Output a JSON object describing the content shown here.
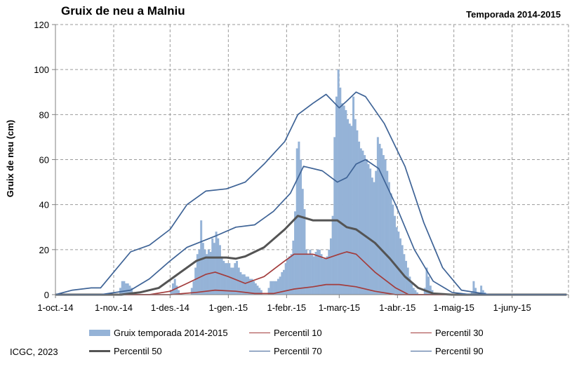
{
  "chart_data": {
    "type": "bar",
    "title": "Gruix de neu a Malniu",
    "subtitle": "Temporada 2014-2015",
    "xlabel": "",
    "ylabel": "Gruix de neu (cm)",
    "ylim": [
      0,
      120
    ],
    "yticks": [
      "0",
      "20",
      "40",
      "60",
      "80",
      "100",
      "120"
    ],
    "xticks": [
      "1-oct.-14",
      "1-nov.-14",
      "1-des.-14",
      "1-gen.-15",
      "1-febr.-15",
      "1-març-15",
      "1-abr.-15",
      "1-maig-15",
      "1-juny-15"
    ],
    "x_start": "2014-10-01",
    "x_end": "2015-06-30",
    "grid": true,
    "legend_position": "bottom",
    "bars": {
      "name": "Gruix temporada 2014-2015",
      "color": "#95b3d7",
      "points": [
        [
          "2014-11-04",
          3
        ],
        [
          "2014-11-05",
          6
        ],
        [
          "2014-11-06",
          6
        ],
        [
          "2014-11-07",
          5
        ],
        [
          "2014-11-08",
          5
        ],
        [
          "2014-11-09",
          4
        ],
        [
          "2014-11-10",
          3
        ],
        [
          "2014-12-01",
          2
        ],
        [
          "2014-12-02",
          5
        ],
        [
          "2014-12-03",
          7
        ],
        [
          "2014-12-04",
          4
        ],
        [
          "2014-12-05",
          2
        ],
        [
          "2014-12-12",
          3
        ],
        [
          "2014-12-13",
          6
        ],
        [
          "2014-12-14",
          12
        ],
        [
          "2014-12-15",
          18
        ],
        [
          "2014-12-16",
          20
        ],
        [
          "2014-12-17",
          33
        ],
        [
          "2014-12-18",
          23
        ],
        [
          "2014-12-19",
          20
        ],
        [
          "2014-12-20",
          18
        ],
        [
          "2014-12-21",
          20
        ],
        [
          "2014-12-22",
          19
        ],
        [
          "2014-12-23",
          25
        ],
        [
          "2014-12-24",
          23
        ],
        [
          "2014-12-25",
          28
        ],
        [
          "2014-12-26",
          25
        ],
        [
          "2014-12-27",
          22
        ],
        [
          "2014-12-28",
          17
        ],
        [
          "2014-12-29",
          15
        ],
        [
          "2014-12-30",
          14
        ],
        [
          "2014-12-31",
          14
        ],
        [
          "2015-01-01",
          14
        ],
        [
          "2015-01-02",
          12
        ],
        [
          "2015-01-03",
          12
        ],
        [
          "2015-01-04",
          14
        ],
        [
          "2015-01-05",
          15
        ],
        [
          "2015-01-06",
          12
        ],
        [
          "2015-01-07",
          10
        ],
        [
          "2015-01-08",
          9
        ],
        [
          "2015-01-09",
          9
        ],
        [
          "2015-01-10",
          8
        ],
        [
          "2015-01-11",
          8
        ],
        [
          "2015-01-12",
          7
        ],
        [
          "2015-01-13",
          7
        ],
        [
          "2015-01-14",
          6
        ],
        [
          "2015-01-15",
          5
        ],
        [
          "2015-01-16",
          4
        ],
        [
          "2015-01-17",
          3
        ],
        [
          "2015-01-18",
          2
        ],
        [
          "2015-01-22",
          3
        ],
        [
          "2015-01-23",
          6
        ],
        [
          "2015-01-24",
          6
        ],
        [
          "2015-01-25",
          6
        ],
        [
          "2015-01-26",
          6
        ],
        [
          "2015-01-27",
          7
        ],
        [
          "2015-01-28",
          8
        ],
        [
          "2015-01-29",
          10
        ],
        [
          "2015-01-30",
          11
        ],
        [
          "2015-01-31",
          14
        ],
        [
          "2015-02-01",
          16
        ],
        [
          "2015-02-02",
          17
        ],
        [
          "2015-02-03",
          18
        ],
        [
          "2015-02-04",
          24
        ],
        [
          "2015-02-05",
          37
        ],
        [
          "2015-02-06",
          65
        ],
        [
          "2015-02-07",
          68
        ],
        [
          "2015-02-08",
          60
        ],
        [
          "2015-02-09",
          47
        ],
        [
          "2015-02-10",
          38
        ],
        [
          "2015-02-11",
          20
        ],
        [
          "2015-02-12",
          18
        ],
        [
          "2015-02-13",
          20
        ],
        [
          "2015-02-14",
          18
        ],
        [
          "2015-02-15",
          17
        ],
        [
          "2015-02-16",
          19
        ],
        [
          "2015-02-17",
          20
        ],
        [
          "2015-02-18",
          20
        ],
        [
          "2015-02-19",
          18
        ],
        [
          "2015-02-20",
          16
        ],
        [
          "2015-02-21",
          16
        ],
        [
          "2015-02-22",
          17
        ],
        [
          "2015-02-23",
          20
        ],
        [
          "2015-02-24",
          25
        ],
        [
          "2015-02-25",
          35
        ],
        [
          "2015-02-26",
          70
        ],
        [
          "2015-02-27",
          88
        ],
        [
          "2015-02-28",
          100
        ],
        [
          "2015-03-01",
          92
        ],
        [
          "2015-03-02",
          85
        ],
        [
          "2015-03-03",
          84
        ],
        [
          "2015-03-04",
          82
        ],
        [
          "2015-03-05",
          78
        ],
        [
          "2015-03-06",
          76
        ],
        [
          "2015-03-07",
          75
        ],
        [
          "2015-03-08",
          88
        ],
        [
          "2015-03-09",
          78
        ],
        [
          "2015-03-10",
          73
        ],
        [
          "2015-03-11",
          68
        ],
        [
          "2015-03-12",
          65
        ],
        [
          "2015-03-13",
          64
        ],
        [
          "2015-03-14",
          62
        ],
        [
          "2015-03-15",
          60
        ],
        [
          "2015-03-16",
          58
        ],
        [
          "2015-03-17",
          56
        ],
        [
          "2015-03-18",
          52
        ],
        [
          "2015-03-19",
          50
        ],
        [
          "2015-03-20",
          55
        ],
        [
          "2015-03-21",
          70
        ],
        [
          "2015-03-22",
          67
        ],
        [
          "2015-03-23",
          65
        ],
        [
          "2015-03-24",
          62
        ],
        [
          "2015-03-25",
          60
        ],
        [
          "2015-03-26",
          55
        ],
        [
          "2015-03-27",
          50
        ],
        [
          "2015-03-28",
          45
        ],
        [
          "2015-03-29",
          40
        ],
        [
          "2015-03-30",
          35
        ],
        [
          "2015-03-31",
          30
        ],
        [
          "2015-04-01",
          28
        ],
        [
          "2015-04-02",
          25
        ],
        [
          "2015-04-03",
          22
        ],
        [
          "2015-04-04",
          18
        ],
        [
          "2015-04-05",
          15
        ],
        [
          "2015-04-06",
          12
        ],
        [
          "2015-04-07",
          8
        ],
        [
          "2015-04-08",
          5
        ],
        [
          "2015-04-09",
          3
        ],
        [
          "2015-04-10",
          2
        ],
        [
          "2015-04-11",
          1
        ],
        [
          "2015-04-15",
          3
        ],
        [
          "2015-04-16",
          12
        ],
        [
          "2015-04-17",
          8
        ],
        [
          "2015-04-18",
          4
        ],
        [
          "2015-04-19",
          2
        ],
        [
          "2015-05-10",
          1
        ],
        [
          "2015-05-11",
          6
        ],
        [
          "2015-05-12",
          3
        ],
        [
          "2015-05-13",
          1
        ],
        [
          "2015-05-15",
          4
        ],
        [
          "2015-05-16",
          2
        ],
        [
          "2015-05-17",
          1
        ]
      ]
    },
    "series": [
      {
        "name": "Percentil 10",
        "color": "#a33c3c",
        "width": 1.7,
        "points": [
          [
            "2014-10-01",
            0
          ],
          [
            "2014-12-01",
            0
          ],
          [
            "2014-12-15",
            1
          ],
          [
            "2014-12-25",
            2
          ],
          [
            "2015-01-05",
            1.5
          ],
          [
            "2015-01-15",
            0.5
          ],
          [
            "2015-01-25",
            0.5
          ],
          [
            "2015-02-05",
            2.5
          ],
          [
            "2015-02-15",
            3.5
          ],
          [
            "2015-02-22",
            4.5
          ],
          [
            "2015-03-01",
            4.5
          ],
          [
            "2015-03-10",
            3.5
          ],
          [
            "2015-03-20",
            1.5
          ],
          [
            "2015-03-31",
            0
          ],
          [
            "2015-06-30",
            0
          ]
        ]
      },
      {
        "name": "Percentil 30",
        "color": "#a33c3c",
        "width": 1.7,
        "points": [
          [
            "2014-10-01",
            0
          ],
          [
            "2014-11-20",
            0
          ],
          [
            "2014-12-01",
            1.5
          ],
          [
            "2014-12-10",
            5
          ],
          [
            "2014-12-20",
            9
          ],
          [
            "2014-12-25",
            10
          ],
          [
            "2015-01-01",
            8
          ],
          [
            "2015-01-10",
            5
          ],
          [
            "2015-01-20",
            8
          ],
          [
            "2015-01-31",
            15
          ],
          [
            "2015-02-05",
            18
          ],
          [
            "2015-02-15",
            18
          ],
          [
            "2015-02-22",
            16
          ],
          [
            "2015-03-01",
            18
          ],
          [
            "2015-03-05",
            19
          ],
          [
            "2015-03-10",
            18
          ],
          [
            "2015-03-20",
            10
          ],
          [
            "2015-03-31",
            3
          ],
          [
            "2015-04-07",
            0
          ],
          [
            "2015-06-30",
            0
          ]
        ]
      },
      {
        "name": "Percentil 50",
        "color": "#545454",
        "width": 3,
        "points": [
          [
            "2014-10-01",
            0
          ],
          [
            "2014-11-05",
            0
          ],
          [
            "2014-11-15",
            1
          ],
          [
            "2014-11-25",
            3
          ],
          [
            "2014-12-05",
            9
          ],
          [
            "2014-12-15",
            15
          ],
          [
            "2014-12-20",
            16.5
          ],
          [
            "2014-12-31",
            16.5
          ],
          [
            "2015-01-05",
            16
          ],
          [
            "2015-01-10",
            17
          ],
          [
            "2015-01-20",
            21
          ],
          [
            "2015-01-31",
            29
          ],
          [
            "2015-02-07",
            35
          ],
          [
            "2015-02-15",
            33
          ],
          [
            "2015-02-22",
            33
          ],
          [
            "2015-02-28",
            33
          ],
          [
            "2015-03-05",
            30
          ],
          [
            "2015-03-10",
            29
          ],
          [
            "2015-03-20",
            23
          ],
          [
            "2015-03-28",
            16
          ],
          [
            "2015-04-05",
            8
          ],
          [
            "2015-04-12",
            3
          ],
          [
            "2015-04-20",
            0.5
          ],
          [
            "2015-04-30",
            0
          ],
          [
            "2015-06-30",
            0
          ]
        ]
      },
      {
        "name": "Percentil 70",
        "color": "#3e6396",
        "width": 1.7,
        "points": [
          [
            "2014-10-01",
            0
          ],
          [
            "2014-10-25",
            0
          ],
          [
            "2014-11-10",
            2
          ],
          [
            "2014-11-20",
            7
          ],
          [
            "2014-12-01",
            15
          ],
          [
            "2014-12-10",
            21
          ],
          [
            "2014-12-25",
            26
          ],
          [
            "2015-01-05",
            30
          ],
          [
            "2015-01-15",
            31
          ],
          [
            "2015-01-25",
            37
          ],
          [
            "2015-02-03",
            45
          ],
          [
            "2015-02-10",
            57
          ],
          [
            "2015-02-20",
            55
          ],
          [
            "2015-02-28",
            50
          ],
          [
            "2015-03-05",
            52
          ],
          [
            "2015-03-10",
            58
          ],
          [
            "2015-03-15",
            60
          ],
          [
            "2015-03-22",
            56
          ],
          [
            "2015-03-31",
            40
          ],
          [
            "2015-04-10",
            20
          ],
          [
            "2015-04-20",
            6
          ],
          [
            "2015-04-30",
            1
          ],
          [
            "2015-05-10",
            0
          ],
          [
            "2015-06-30",
            0
          ]
        ]
      },
      {
        "name": "Percentil 90",
        "color": "#3e6396",
        "width": 1.7,
        "points": [
          [
            "2014-10-01",
            0
          ],
          [
            "2014-10-10",
            2
          ],
          [
            "2014-10-20",
            3
          ],
          [
            "2014-10-25",
            3
          ],
          [
            "2014-11-01",
            10
          ],
          [
            "2014-11-10",
            19
          ],
          [
            "2014-11-20",
            22
          ],
          [
            "2014-12-01",
            29
          ],
          [
            "2014-12-10",
            40
          ],
          [
            "2014-12-20",
            46
          ],
          [
            "2014-12-31",
            47
          ],
          [
            "2015-01-10",
            50
          ],
          [
            "2015-01-20",
            58
          ],
          [
            "2015-01-31",
            68
          ],
          [
            "2015-02-07",
            80
          ],
          [
            "2015-02-15",
            85
          ],
          [
            "2015-02-22",
            89
          ],
          [
            "2015-03-01",
            83
          ],
          [
            "2015-03-05",
            86
          ],
          [
            "2015-03-10",
            90
          ],
          [
            "2015-03-15",
            88
          ],
          [
            "2015-03-25",
            76
          ],
          [
            "2015-04-05",
            57
          ],
          [
            "2015-04-15",
            32
          ],
          [
            "2015-04-25",
            12
          ],
          [
            "2015-05-05",
            2
          ],
          [
            "2015-05-20",
            0
          ],
          [
            "2015-06-30",
            0
          ]
        ]
      }
    ]
  },
  "footer": {
    "credit": "ICGC, 2023"
  }
}
